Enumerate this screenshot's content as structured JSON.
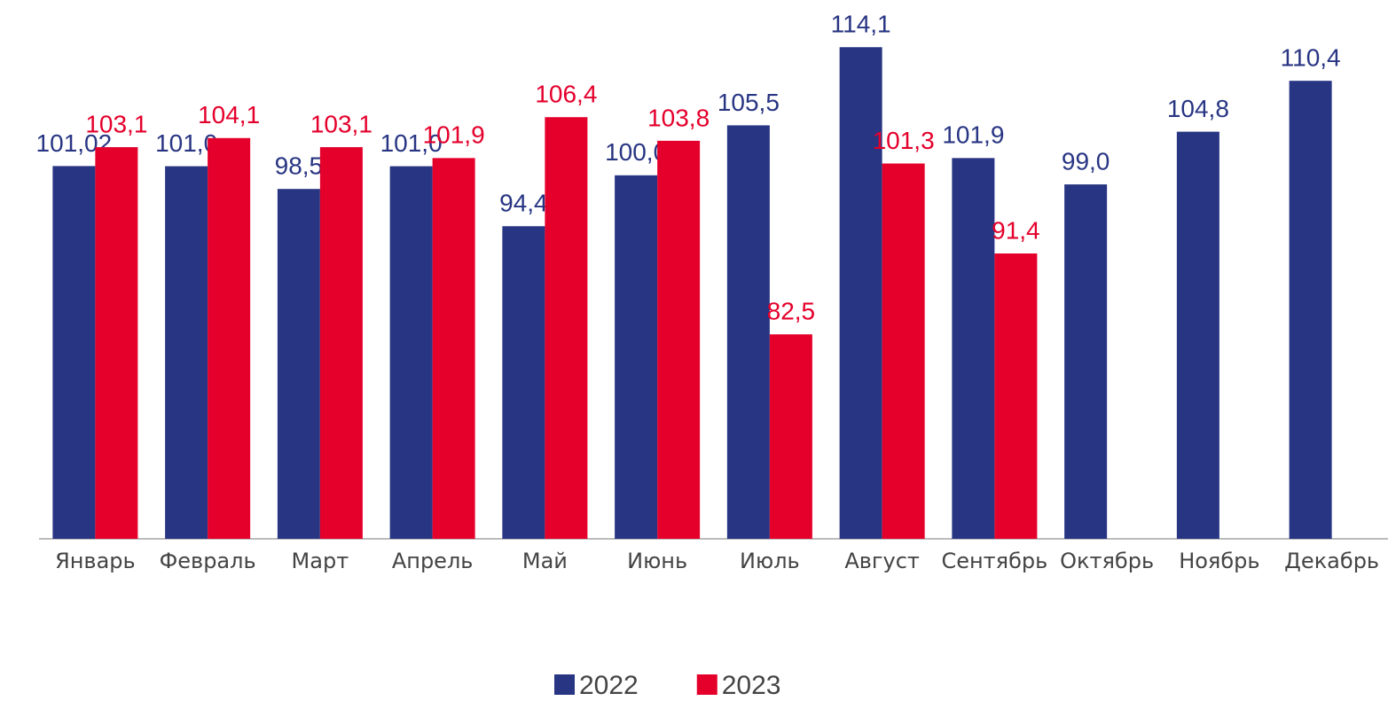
{
  "chart_data": {
    "type": "bar",
    "categories": [
      "Январь",
      "Февраль",
      "Март",
      "Апрель",
      "Май",
      "Июнь",
      "Июль",
      "Август",
      "Сентябрь",
      "Октябрь",
      "Ноябрь",
      "Декабрь"
    ],
    "series": [
      {
        "name": "2022",
        "color": "#283583",
        "values": [
          101.02,
          101.0,
          98.5,
          101.0,
          94.4,
          100.0,
          105.5,
          114.1,
          101.9,
          99.0,
          104.8,
          110.4
        ],
        "value_labels": [
          "101,02",
          "101,0",
          "98,5",
          "101,0",
          "94,4",
          "100,0",
          "105,5",
          "114,1",
          "101,9",
          "99,0",
          "104,8",
          "110,4"
        ]
      },
      {
        "name": "2023",
        "color": "#e4002b",
        "values": [
          103.1,
          104.1,
          103.1,
          101.9,
          106.4,
          103.8,
          82.5,
          101.3,
          91.4,
          null,
          null,
          null
        ],
        "value_labels": [
          "103,1",
          "104,1",
          "103,1",
          "101,9",
          "106,4",
          "103,8",
          "82,5",
          "101,3",
          "91,4",
          null,
          null,
          null
        ]
      }
    ],
    "ylim": [
      60,
      119
    ],
    "legend": "bottom"
  }
}
